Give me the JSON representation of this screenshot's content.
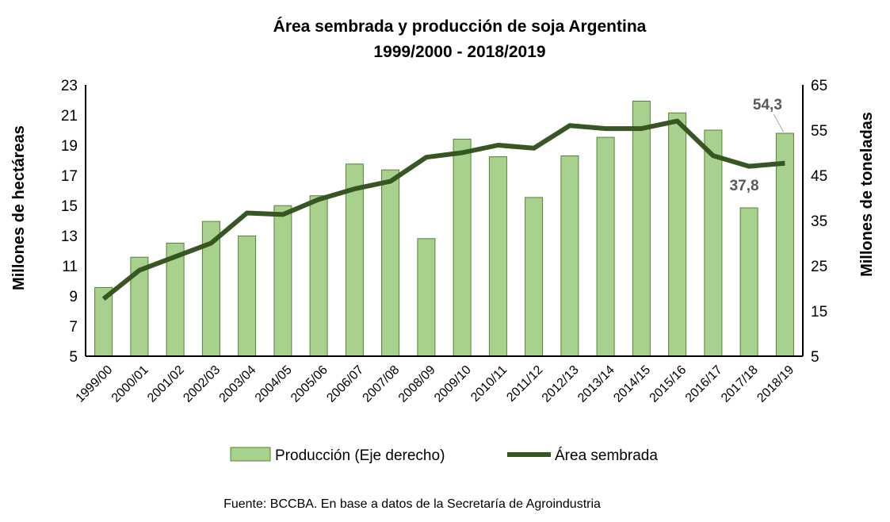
{
  "chart_data": {
    "type": "bar+line",
    "title": "Área sembrada y producción de soja Argentina",
    "subtitle": "1999/2000 - 2018/2019",
    "ylabel_left": "Millones de hectáreas",
    "ylabel_right": "Millones de toneladas",
    "xlabel": "",
    "ylim_left": [
      5,
      23
    ],
    "yticks_left": [
      "5",
      "7",
      "9",
      "11",
      "13",
      "15",
      "17",
      "19",
      "21",
      "23"
    ],
    "ylim_right": [
      5,
      65
    ],
    "yticks_right": [
      "5",
      "15",
      "25",
      "35",
      "45",
      "55",
      "65"
    ],
    "categories": [
      "1999/00",
      "2000/01",
      "2001/02",
      "2002/03",
      "2003/04",
      "2004/05",
      "2005/06",
      "2006/07",
      "2007/08",
      "2008/09",
      "2009/10",
      "2010/11",
      "2011/12",
      "2012/13",
      "2013/14",
      "2014/15",
      "2015/16",
      "2016/17",
      "2017/18",
      "2018/19"
    ],
    "series": [
      {
        "name": "Producción (Eje derecho)",
        "type": "bar",
        "axis": "right",
        "color": "#a9d18e",
        "values": [
          20.2,
          26.9,
          30.0,
          34.8,
          31.6,
          38.3,
          40.5,
          47.5,
          46.2,
          31.0,
          53.0,
          49.1,
          40.1,
          49.3,
          53.4,
          61.4,
          58.8,
          55.0,
          37.8,
          54.3
        ]
      },
      {
        "name": "Área sembrada",
        "type": "line",
        "axis": "left",
        "color": "#375623",
        "values": [
          8.8,
          10.7,
          11.6,
          12.5,
          14.5,
          14.4,
          15.4,
          16.1,
          16.6,
          18.2,
          18.5,
          19.0,
          18.8,
          20.3,
          20.1,
          20.1,
          20.6,
          18.3,
          17.6,
          17.8
        ]
      }
    ],
    "data_labels": [
      {
        "series": "Producción (Eje derecho)",
        "category": "2017/18",
        "text": "37,8"
      },
      {
        "series": "Producción (Eje derecho)",
        "category": "2018/19",
        "text": "54,3"
      }
    ],
    "legend": {
      "position": "bottom"
    },
    "grid": false
  },
  "source": "Fuente: BCCBA. En base a datos de la Secretaría de Agroindustria"
}
